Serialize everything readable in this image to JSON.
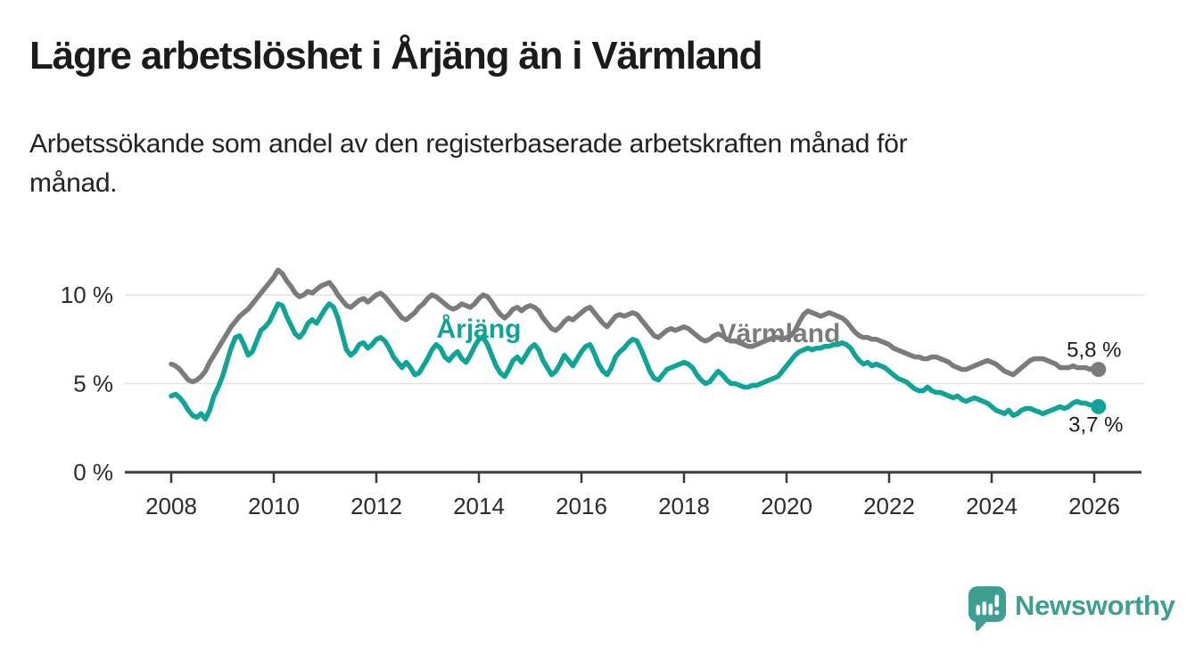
{
  "header": {
    "title": "Lägre arbetslöshet i Årjäng än i Värmland",
    "subtitle_line1": "Arbetssökande som andel av den registerbaserade arbetskraften månad för",
    "subtitle_line2": "månad."
  },
  "chart_data": {
    "type": "line",
    "title": "Lägre arbetslöshet i Årjäng än i Värmland",
    "subtitle": "Arbetssökande som andel av den registerbaserade arbetskraften månad för månad.",
    "x_unit": "month",
    "x_range": [
      "2008-01",
      "2026-02"
    ],
    "x_tick_labels": [
      "2008",
      "2010",
      "2012",
      "2014",
      "2016",
      "2018",
      "2020",
      "2022",
      "2024",
      "2026"
    ],
    "y_ticks": [
      {
        "value": 0,
        "label": "0 %"
      },
      {
        "value": 5,
        "label": "5 %"
      },
      {
        "value": 10,
        "label": "10 %"
      }
    ],
    "ylim": [
      0,
      12
    ],
    "grid": "horizontal",
    "legend_position": "inline-labels",
    "series": [
      {
        "name": "Värmland",
        "color": "#7B7B7B",
        "end_label": "5,8 %",
        "end_value": 5.8,
        "values": [
          6.1,
          6.0,
          5.8,
          5.5,
          5.2,
          5.1,
          5.2,
          5.4,
          5.7,
          6.2,
          6.6,
          7.0,
          7.4,
          7.8,
          8.2,
          8.5,
          8.8,
          9.0,
          9.2,
          9.5,
          9.8,
          10.1,
          10.4,
          10.7,
          11.0,
          11.4,
          11.2,
          10.8,
          10.5,
          10.1,
          9.9,
          10.0,
          10.2,
          10.1,
          10.3,
          10.5,
          10.6,
          10.7,
          10.4,
          10.0,
          9.7,
          9.4,
          9.3,
          9.5,
          9.7,
          9.8,
          9.6,
          9.8,
          10.0,
          10.1,
          9.9,
          9.6,
          9.3,
          9.0,
          8.7,
          8.6,
          8.8,
          9.0,
          9.3,
          9.5,
          9.8,
          10.0,
          9.9,
          9.7,
          9.5,
          9.3,
          9.2,
          9.3,
          9.5,
          9.4,
          9.3,
          9.5,
          9.8,
          10.0,
          9.9,
          9.6,
          9.2,
          8.9,
          8.7,
          8.9,
          9.2,
          9.3,
          9.1,
          9.3,
          9.4,
          9.3,
          9.1,
          8.7,
          8.4,
          8.1,
          8.0,
          8.2,
          8.5,
          8.7,
          8.6,
          8.8,
          9.0,
          9.2,
          9.3,
          9.0,
          8.7,
          8.4,
          8.2,
          8.5,
          8.8,
          8.9,
          8.8,
          8.9,
          9.0,
          8.9,
          8.6,
          8.3,
          8.0,
          7.7,
          7.6,
          7.8,
          8.0,
          8.1,
          8.0,
          8.1,
          8.2,
          8.1,
          7.9,
          7.7,
          7.5,
          7.4,
          7.5,
          7.7,
          7.8,
          7.7,
          7.5,
          7.4,
          7.4,
          7.3,
          7.2,
          7.1,
          7.1,
          7.2,
          7.3,
          7.4,
          7.5,
          7.6,
          7.6,
          7.5,
          7.6,
          7.7,
          8.0,
          8.5,
          8.9,
          9.1,
          9.0,
          8.9,
          8.8,
          8.9,
          9.0,
          8.9,
          8.8,
          8.7,
          8.5,
          8.2,
          7.9,
          7.7,
          7.6,
          7.6,
          7.5,
          7.5,
          7.4,
          7.3,
          7.2,
          7.0,
          6.9,
          6.8,
          6.7,
          6.6,
          6.5,
          6.5,
          6.4,
          6.4,
          6.5,
          6.5,
          6.4,
          6.3,
          6.2,
          6.0,
          5.9,
          5.8,
          5.8,
          5.9,
          6.0,
          6.1,
          6.2,
          6.3,
          6.2,
          6.1,
          5.9,
          5.7,
          5.6,
          5.5,
          5.7,
          5.9,
          6.1,
          6.3,
          6.4,
          6.4,
          6.4,
          6.3,
          6.2,
          6.1,
          5.9,
          5.9,
          5.9,
          6.0,
          5.9,
          5.9,
          5.9,
          5.8,
          5.9,
          5.8
        ]
      },
      {
        "name": "Årjäng",
        "color": "#10A397",
        "end_label": "3,7 %",
        "end_value": 3.7,
        "values": [
          4.3,
          4.4,
          4.2,
          3.9,
          3.5,
          3.2,
          3.1,
          3.3,
          3.0,
          3.5,
          4.3,
          4.8,
          5.4,
          6.2,
          7.0,
          7.6,
          7.7,
          7.2,
          6.6,
          6.8,
          7.4,
          8.0,
          8.2,
          8.5,
          9.0,
          9.5,
          9.4,
          8.8,
          8.3,
          7.8,
          7.6,
          7.9,
          8.4,
          8.6,
          8.4,
          8.8,
          9.2,
          9.5,
          9.3,
          8.7,
          7.8,
          6.9,
          6.6,
          6.8,
          7.2,
          7.3,
          7.0,
          7.2,
          7.5,
          7.6,
          7.4,
          7.0,
          6.5,
          6.2,
          5.9,
          6.2,
          5.9,
          5.5,
          5.6,
          6.0,
          6.4,
          6.9,
          7.2,
          7.0,
          6.5,
          6.3,
          6.6,
          6.8,
          6.4,
          6.2,
          6.6,
          7.1,
          7.5,
          7.6,
          7.2,
          6.6,
          6.0,
          5.6,
          5.4,
          5.8,
          6.3,
          6.5,
          6.2,
          6.6,
          7.0,
          7.2,
          6.9,
          6.3,
          5.9,
          5.5,
          5.7,
          6.1,
          6.6,
          6.3,
          6.0,
          6.4,
          6.8,
          7.1,
          7.2,
          6.7,
          6.1,
          5.7,
          5.5,
          5.9,
          6.5,
          6.8,
          7.0,
          7.3,
          7.5,
          7.4,
          6.9,
          6.3,
          5.7,
          5.3,
          5.2,
          5.5,
          5.8,
          5.9,
          6.0,
          6.1,
          6.2,
          6.1,
          5.9,
          5.5,
          5.2,
          5.0,
          5.1,
          5.4,
          5.7,
          5.5,
          5.2,
          5.0,
          5.0,
          4.9,
          4.8,
          4.8,
          4.9,
          4.9,
          5.0,
          5.1,
          5.2,
          5.3,
          5.4,
          5.7,
          6.0,
          6.3,
          6.6,
          6.8,
          6.9,
          7.0,
          6.9,
          7.0,
          7.0,
          7.1,
          7.1,
          7.2,
          7.2,
          7.3,
          7.2,
          7.0,
          6.6,
          6.3,
          6.1,
          6.2,
          6.0,
          6.1,
          6.0,
          5.9,
          5.7,
          5.5,
          5.3,
          5.2,
          5.1,
          4.9,
          4.7,
          4.6,
          4.6,
          4.8,
          4.6,
          4.5,
          4.5,
          4.4,
          4.3,
          4.2,
          4.3,
          4.1,
          4.0,
          4.1,
          4.2,
          4.1,
          4.0,
          3.9,
          3.7,
          3.5,
          3.4,
          3.3,
          3.5,
          3.2,
          3.3,
          3.5,
          3.6,
          3.6,
          3.5,
          3.4,
          3.3,
          3.4,
          3.5,
          3.6,
          3.7,
          3.6,
          3.7,
          3.9,
          4.0,
          3.9,
          3.9,
          3.8,
          3.8,
          3.7
        ]
      }
    ]
  },
  "footer": {
    "logo_text": "Newsworthy",
    "logo_color": "#3E9E92"
  }
}
